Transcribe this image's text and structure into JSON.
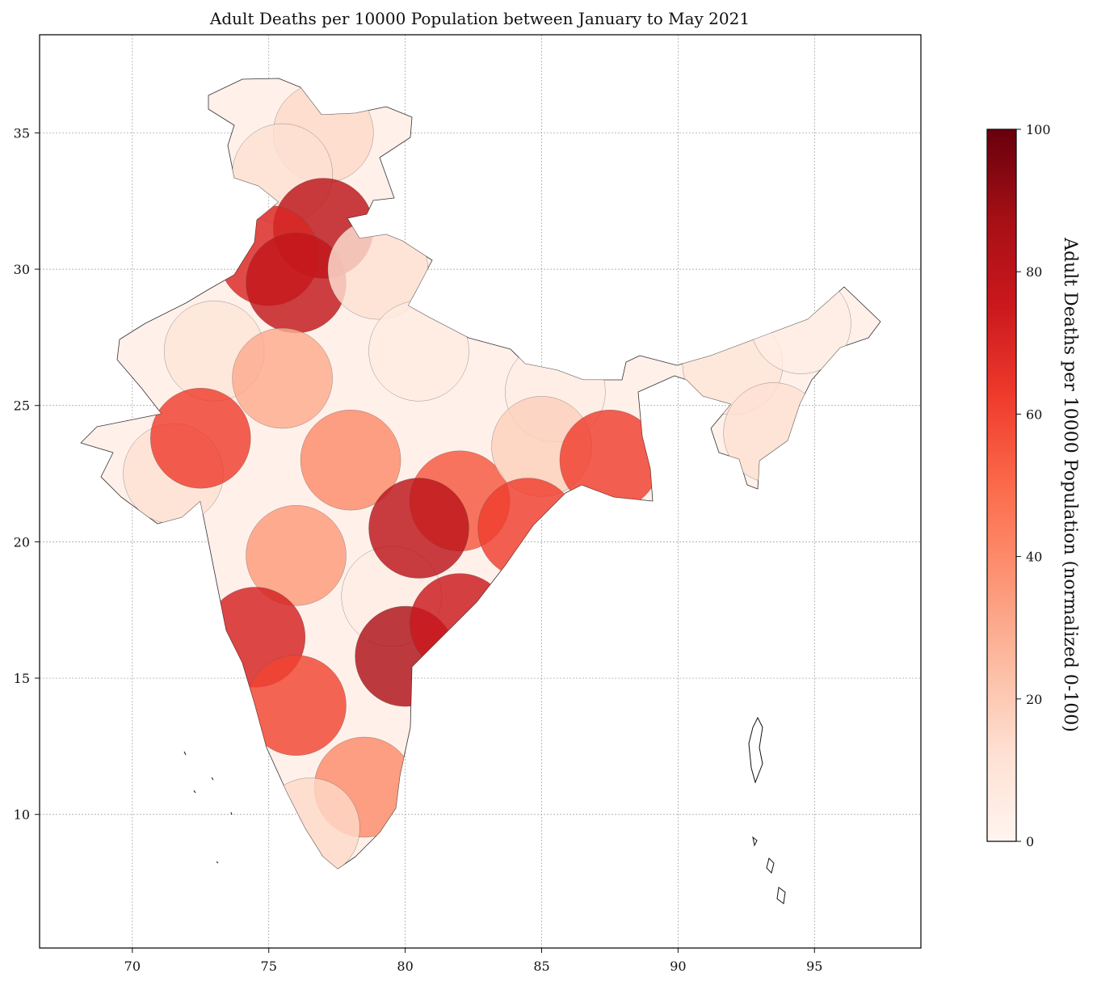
{
  "chart_data": {
    "type": "choropleth-map",
    "title": "Adult Deaths per 10000 Population between January to May 2021",
    "x_ticks": [
      "70",
      "75",
      "80",
      "85",
      "90",
      "95"
    ],
    "x_tick_values": [
      70,
      75,
      80,
      85,
      90,
      95
    ],
    "y_ticks": [
      "10",
      "15",
      "20",
      "25",
      "30",
      "35"
    ],
    "y_tick_values": [
      10,
      15,
      20,
      25,
      30,
      35
    ],
    "xlim": [
      66.6,
      98.9
    ],
    "ylim": [
      5.1,
      38.6
    ],
    "grid": true,
    "colormap": "Reds",
    "colorbar": {
      "label": "Adult Deaths per 10000 Population (normalized 0-100)",
      "ticks": [
        "0",
        "20",
        "40",
        "60",
        "80",
        "100"
      ],
      "tick_values": [
        0,
        20,
        40,
        60,
        80,
        100
      ],
      "range": [
        0,
        100
      ],
      "colors": [
        "#fff5f0",
        "#fee0d2",
        "#fcbba1",
        "#fc9272",
        "#fb6a4a",
        "#ef3b2c",
        "#cb181d",
        "#a50f15",
        "#67000d"
      ]
    },
    "regions": [
      {
        "lon": 77.0,
        "lat": 35.0,
        "value": 15
      },
      {
        "lon": 75.5,
        "lat": 33.5,
        "value": 12
      },
      {
        "lon": 77.0,
        "lat": 31.5,
        "value": 80
      },
      {
        "lon": 75.0,
        "lat": 30.5,
        "value": 70
      },
      {
        "lon": 76.0,
        "lat": 29.5,
        "value": 78
      },
      {
        "lon": 79.0,
        "lat": 30.0,
        "value": 12
      },
      {
        "lon": 73.0,
        "lat": 27.0,
        "value": 10
      },
      {
        "lon": 75.5,
        "lat": 26.0,
        "value": 30
      },
      {
        "lon": 80.5,
        "lat": 27.0,
        "value": 6
      },
      {
        "lon": 85.5,
        "lat": 25.5,
        "value": 5
      },
      {
        "lon": 71.5,
        "lat": 22.5,
        "value": 12
      },
      {
        "lon": 72.5,
        "lat": 23.8,
        "value": 62
      },
      {
        "lon": 78.0,
        "lat": 23.0,
        "value": 40
      },
      {
        "lon": 82.0,
        "lat": 21.5,
        "value": 55
      },
      {
        "lon": 85.0,
        "lat": 23.5,
        "value": 18
      },
      {
        "lon": 87.5,
        "lat": 23.0,
        "value": 62
      },
      {
        "lon": 84.5,
        "lat": 20.5,
        "value": 62
      },
      {
        "lon": 76.0,
        "lat": 19.5,
        "value": 35
      },
      {
        "lon": 79.5,
        "lat": 18.0,
        "value": 5
      },
      {
        "lon": 80.5,
        "lat": 20.5,
        "value": 80
      },
      {
        "lon": 74.5,
        "lat": 16.5,
        "value": 72
      },
      {
        "lon": 76.0,
        "lat": 14.0,
        "value": 60
      },
      {
        "lon": 80.0,
        "lat": 15.8,
        "value": 85
      },
      {
        "lon": 82.0,
        "lat": 17.0,
        "value": 75
      },
      {
        "lon": 78.5,
        "lat": 11.0,
        "value": 40
      },
      {
        "lon": 76.5,
        "lat": 9.5,
        "value": 15
      },
      {
        "lon": 92.0,
        "lat": 26.5,
        "value": 10
      },
      {
        "lon": 94.5,
        "lat": 28.0,
        "value": 5
      },
      {
        "lon": 93.5,
        "lat": 24.0,
        "value": 12
      }
    ]
  }
}
